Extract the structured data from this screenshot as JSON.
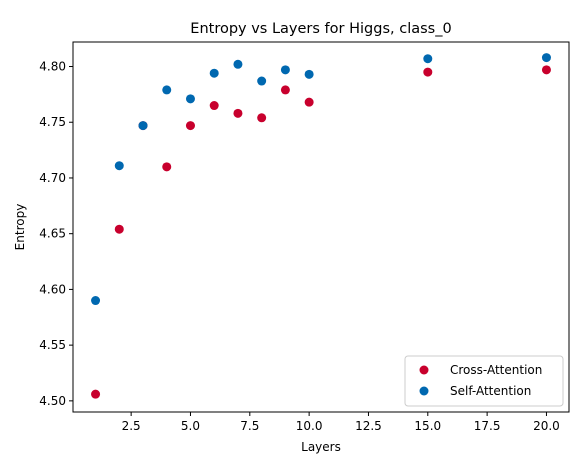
{
  "chart_data": {
    "type": "scatter",
    "title": "Entropy vs Layers for Higgs, class_0",
    "xlabel": "Layers",
    "ylabel": "Entropy",
    "xlim": [
      0.05,
      20.95
    ],
    "ylim": [
      4.49,
      4.822
    ],
    "xticks": [
      2.5,
      5.0,
      7.5,
      10.0,
      12.5,
      15.0,
      17.5,
      20.0
    ],
    "xtick_labels": [
      "2.5",
      "5.0",
      "7.5",
      "10.0",
      "12.5",
      "15.0",
      "17.5",
      "20.0"
    ],
    "yticks": [
      4.5,
      4.55,
      4.6,
      4.65,
      4.7,
      4.75,
      4.8
    ],
    "ytick_labels": [
      "4.50",
      "4.55",
      "4.60",
      "4.65",
      "4.70",
      "4.75",
      "4.80"
    ],
    "grid": false,
    "legend_position": "lower-right",
    "series": [
      {
        "name": "Cross-Attention",
        "color": "#c8002d",
        "points": [
          {
            "x": 1,
            "y": 4.506
          },
          {
            "x": 2,
            "y": 4.654
          },
          {
            "x": 3,
            "y": 4.747
          },
          {
            "x": 4,
            "y": 4.71
          },
          {
            "x": 5,
            "y": 4.747
          },
          {
            "x": 6,
            "y": 4.765
          },
          {
            "x": 7,
            "y": 4.758
          },
          {
            "x": 8,
            "y": 4.754
          },
          {
            "x": 9,
            "y": 4.779
          },
          {
            "x": 10,
            "y": 4.768
          },
          {
            "x": 15,
            "y": 4.795
          },
          {
            "x": 20,
            "y": 4.797
          }
        ]
      },
      {
        "name": "Self-Attention",
        "color": "#0068b0",
        "points": [
          {
            "x": 1,
            "y": 4.59
          },
          {
            "x": 2,
            "y": 4.711
          },
          {
            "x": 3,
            "y": 4.747
          },
          {
            "x": 4,
            "y": 4.779
          },
          {
            "x": 5,
            "y": 4.771
          },
          {
            "x": 6,
            "y": 4.794
          },
          {
            "x": 7,
            "y": 4.802
          },
          {
            "x": 8,
            "y": 4.787
          },
          {
            "x": 9,
            "y": 4.797
          },
          {
            "x": 10,
            "y": 4.793
          },
          {
            "x": 15,
            "y": 4.807
          },
          {
            "x": 20,
            "y": 4.808
          }
        ]
      }
    ]
  }
}
